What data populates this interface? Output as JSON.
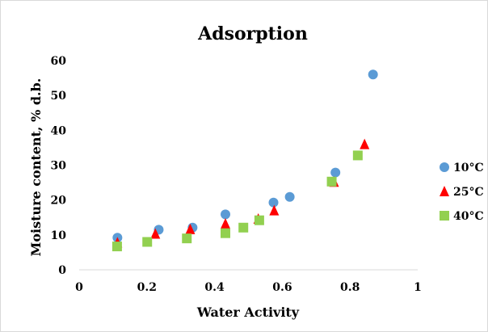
{
  "chart_data": {
    "type": "scatter",
    "title": "Adsorption",
    "xlabel": "Water Activity",
    "ylabel": "Moisture content, % d.b.",
    "xlim": [
      0,
      1
    ],
    "ylim": [
      0,
      60
    ],
    "xticks": [
      "0",
      "0.2",
      "0.4",
      "0.6",
      "0.8",
      "1"
    ],
    "yticks": [
      "0",
      "10",
      "20",
      "30",
      "40",
      "50",
      "60"
    ],
    "grid": false,
    "legend": "right",
    "series": [
      {
        "name": "10°C",
        "marker": "circle",
        "color": "#5b9bd5",
        "x": [
          0.113,
          0.235,
          0.335,
          0.432,
          0.574,
          0.622,
          0.757,
          0.868
        ],
        "y": [
          9.2,
          11.5,
          12.1,
          15.9,
          19.3,
          20.9,
          27.9,
          56.0
        ]
      },
      {
        "name": "25°C",
        "marker": "triangle",
        "color": "#ff0000",
        "x": [
          0.113,
          0.225,
          0.328,
          0.432,
          0.529,
          0.576,
          0.753,
          0.843
        ],
        "y": [
          7.8,
          10.3,
          11.6,
          13.2,
          14.6,
          17.0,
          25.2,
          36.0
        ]
      },
      {
        "name": "40°C",
        "marker": "square",
        "color": "#92d050",
        "x": [
          0.112,
          0.201,
          0.318,
          0.432,
          0.485,
          0.532,
          0.746,
          0.823
        ],
        "y": [
          6.7,
          8.0,
          9.0,
          10.5,
          12.1,
          14.2,
          25.3,
          32.8
        ]
      }
    ]
  }
}
